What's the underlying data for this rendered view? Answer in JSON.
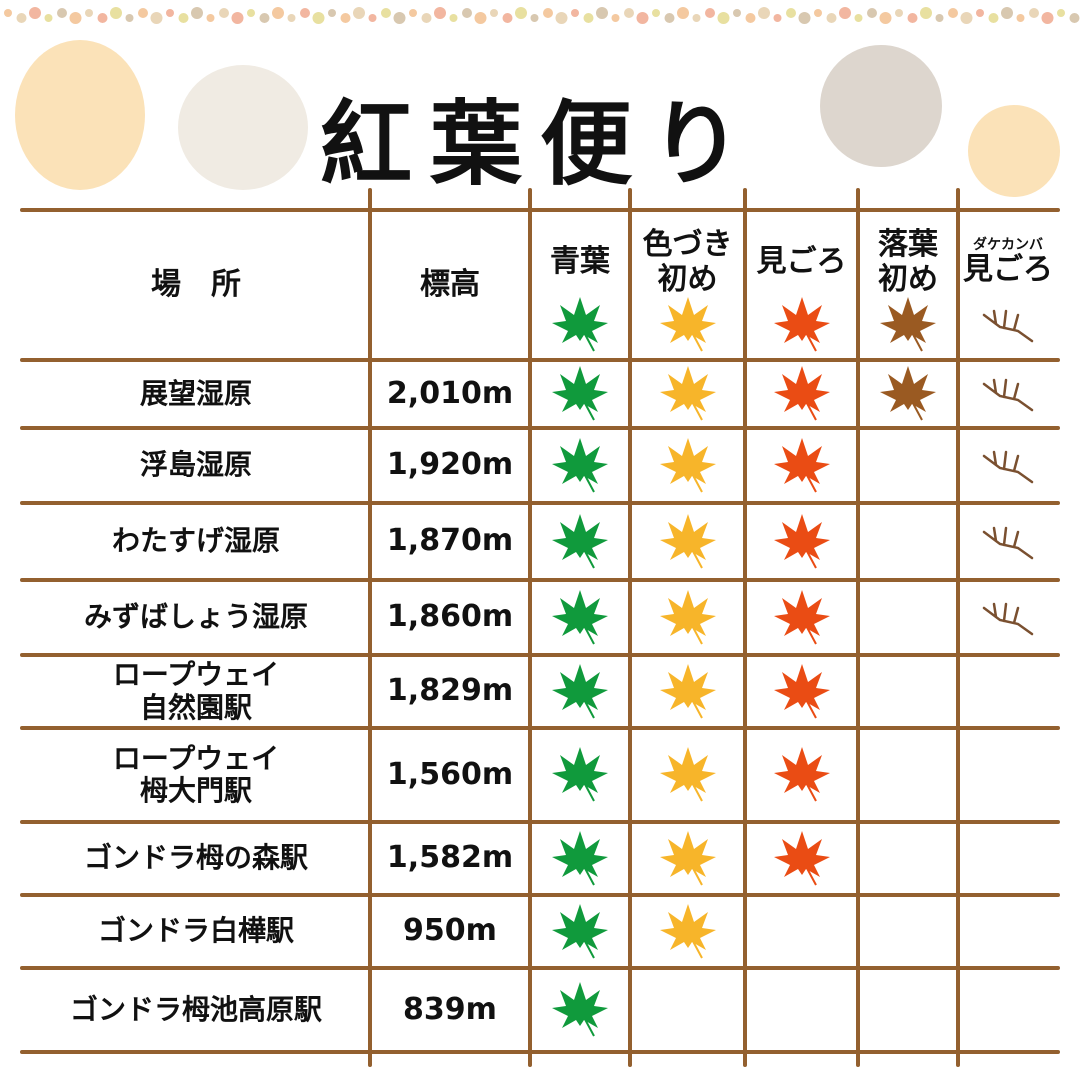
{
  "title": "紅葉便り",
  "colors": {
    "line": "#93602f",
    "green": "#109a3c",
    "yellow": "#f7b52a",
    "red": "#ea4c14",
    "brown": "#9a5a22",
    "twig": "#7a5030"
  },
  "headers": {
    "place": "場　所",
    "altitude": "標高",
    "stages": [
      {
        "label": "青葉",
        "icon": "green-maple-leaf"
      },
      {
        "label": "色づき\n初め",
        "icon": "yellow-maple-leaf"
      },
      {
        "label": "見ごろ",
        "icon": "red-maple-leaf"
      },
      {
        "label": "落葉\n初め",
        "icon": "brown-maple-leaf"
      },
      {
        "small": "ダケカンバ",
        "label": "見ごろ",
        "icon": "bare-twig"
      }
    ]
  },
  "rows": [
    {
      "place": "展望湿原",
      "altitude": "2,010m",
      "stages": [
        1,
        1,
        1,
        1,
        1
      ]
    },
    {
      "place": "浮島湿原",
      "altitude": "1,920m",
      "stages": [
        1,
        1,
        1,
        0,
        1
      ]
    },
    {
      "place": "わたすげ湿原",
      "altitude": "1,870m",
      "stages": [
        1,
        1,
        1,
        0,
        1
      ]
    },
    {
      "place": "みずばしょう湿原",
      "altitude": "1,860m",
      "stages": [
        1,
        1,
        1,
        0,
        1
      ]
    },
    {
      "place": "ロープウェイ\n自然園駅",
      "altitude": "1,829m",
      "stages": [
        1,
        1,
        1,
        0,
        0
      ]
    },
    {
      "place": "ロープウェイ\n栂大門駅",
      "altitude": "1,560m",
      "stages": [
        1,
        1,
        1,
        0,
        0
      ]
    },
    {
      "place": "ゴンドラ栂の森駅",
      "altitude": "1,582m",
      "stages": [
        1,
        1,
        1,
        0,
        0
      ]
    },
    {
      "place": "ゴンドラ白樺駅",
      "altitude": "950m",
      "stages": [
        1,
        1,
        0,
        0,
        0
      ]
    },
    {
      "place": "ゴンドラ栂池高原駅",
      "altitude": "839m",
      "stages": [
        1,
        0,
        0,
        0,
        0
      ]
    }
  ]
}
